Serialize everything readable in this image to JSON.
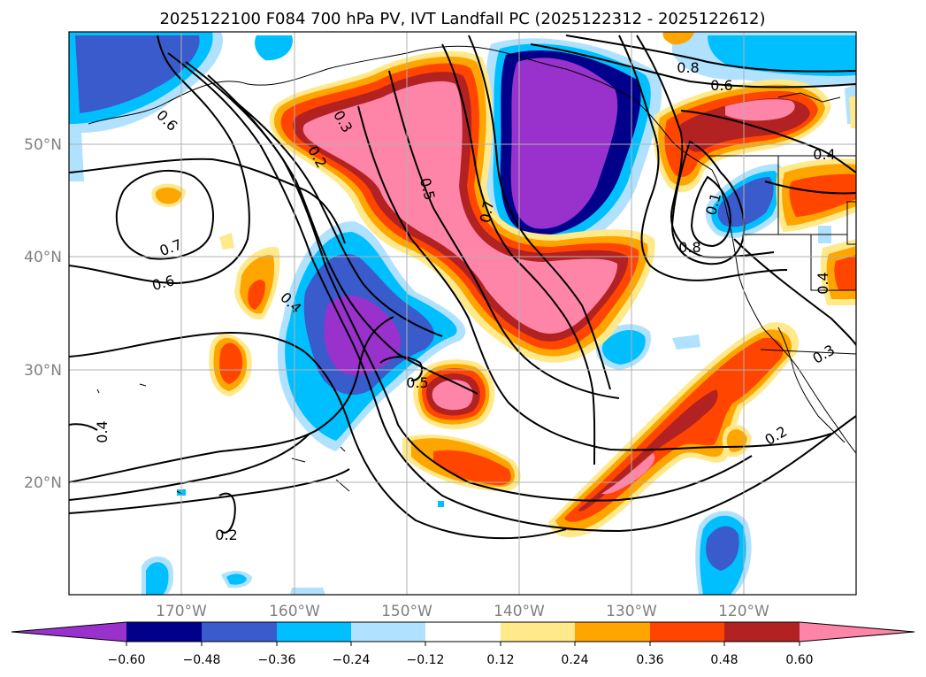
{
  "map": {
    "title": "2025122100 F084 700 hPa PV, IVT Landfall PC (2025122312 - 2025122612)",
    "lat_labels": [
      "50°N",
      "40°N",
      "30°N",
      "20°N"
    ],
    "lon_labels": [
      "170°W",
      "160°W",
      "150°W",
      "140°W",
      "130°W",
      "120°W"
    ],
    "contour_labels": [
      "0.8",
      "0.6",
      "0.4",
      "0.3",
      "0.2",
      "0.5",
      "0.7",
      "0.6",
      "0.7",
      "0.8",
      "0.6",
      "0.4",
      "0.5",
      "0.4",
      "0.2",
      "0.2",
      "0.3",
      "0.4",
      "0.1"
    ]
  },
  "colorbar": {
    "tick_labels": [
      "−0.60",
      "−0.48",
      "−0.36",
      "−0.24",
      "−0.12",
      "0.12",
      "0.24",
      "0.36",
      "0.48",
      "0.60"
    ],
    "colors": {
      "lt_neg060": "#9932CC",
      "neg060_neg048": "#00008B",
      "neg048_neg036": "#3A5BCC",
      "neg036_neg024": "#00BFFF",
      "neg024_neg012": "#B0E2FF",
      "neg012_012": "#FFFFFF",
      "p012_p024": "#FFE98A",
      "p024_p036": "#FFA500",
      "p036_p048": "#FF4500",
      "p048_p060": "#B22222",
      "gt_060": "#FF85A8"
    }
  }
}
